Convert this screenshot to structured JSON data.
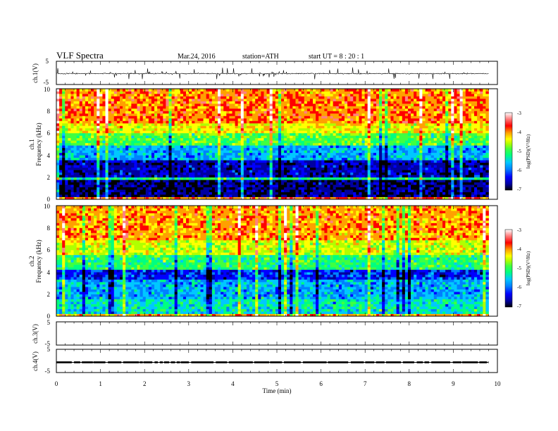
{
  "header": {
    "title": "VLF  Spectra",
    "date": "Mar.24, 2016",
    "station": "station=ATH",
    "start": "start  UT  =   8  : 20 : 1"
  },
  "colors": {
    "colormap": [
      "#000000",
      "#0000a0",
      "#0000ff",
      "#0080ff",
      "#00c8ff",
      "#00ff80",
      "#40ff40",
      "#b0ff00",
      "#ffff00",
      "#ffa000",
      "#ff0000",
      "#ff8080",
      "#ffffff"
    ],
    "frame": "#000000",
    "waveform": "#000000"
  },
  "chart_data": [
    {
      "type": "line",
      "panel": "ch1-waveform",
      "ylabel": "ch.1(V)",
      "ylim": [
        -5,
        5
      ],
      "yticks": [
        "5",
        "-5"
      ],
      "x_range_min": [
        0,
        9.8
      ],
      "series": [
        {
          "values": "noise around -0.3 V, bursts to about ±2.5 V"
        }
      ]
    },
    {
      "type": "heatmap",
      "panel": "ch1-spectrogram",
      "ylabel": [
        "ch.1",
        "Frequency (kHz)"
      ],
      "ylim": [
        0,
        10
      ],
      "yticks": [
        "0",
        "2",
        "4",
        "6",
        "8",
        "10"
      ],
      "x_range_min": [
        0,
        9.8
      ],
      "colorbar": {
        "label": "log(PSD)(V²/Hz)",
        "range": [
          -7,
          -3
        ],
        "ticks": [
          "-3",
          "-4",
          "-5",
          "-6",
          "-7"
        ]
      },
      "frequency_profile": [
        {
          "f_khz": [
            0.0,
            0.3
          ],
          "log_psd": -3.8
        },
        {
          "f_khz": [
            0.3,
            1.8
          ],
          "log_psd": -6.8
        },
        {
          "f_khz": [
            1.8,
            2.1
          ],
          "log_psd": -5.3
        },
        {
          "f_khz": [
            2.1,
            3.5
          ],
          "log_psd": -6.6
        },
        {
          "f_khz": [
            3.5,
            5.0
          ],
          "log_psd": -5.8
        },
        {
          "f_khz": [
            5.0,
            6.0
          ],
          "log_psd": -5.0
        },
        {
          "f_khz": [
            6.0,
            7.0
          ],
          "log_psd": -4.4
        },
        {
          "f_khz": [
            7.0,
            10.0
          ],
          "log_psd": -3.9
        }
      ]
    },
    {
      "type": "heatmap",
      "panel": "ch2-spectrogram",
      "ylabel": [
        "ch.2",
        "Frequency (kHz)"
      ],
      "ylim": [
        0,
        10
      ],
      "yticks": [
        "0",
        "2",
        "4",
        "6",
        "8",
        "10"
      ],
      "x_range_min": [
        0,
        9.8
      ],
      "colorbar": {
        "label": "log(PSD)(V²/Hz)",
        "range": [
          -7,
          -3
        ],
        "ticks": [
          "-3",
          "-4",
          "-5",
          "-6",
          "-7"
        ]
      },
      "frequency_profile": [
        {
          "f_khz": [
            0.0,
            0.3
          ],
          "log_psd": -4.0
        },
        {
          "f_khz": [
            0.3,
            1.5
          ],
          "log_psd": -5.5
        },
        {
          "f_khz": [
            1.5,
            3.3
          ],
          "log_psd": -5.8
        },
        {
          "f_khz": [
            3.3,
            4.2
          ],
          "log_psd": -6.3
        },
        {
          "f_khz": [
            4.2,
            5.5
          ],
          "log_psd": -5.2
        },
        {
          "f_khz": [
            5.5,
            7.0
          ],
          "log_psd": -4.5
        },
        {
          "f_khz": [
            7.0,
            10.0
          ],
          "log_psd": -4.0
        }
      ]
    },
    {
      "type": "line",
      "panel": "ch3-waveform",
      "ylabel": "ch.3(V)",
      "ylim": [
        -5,
        5
      ],
      "yticks": [
        "5",
        "-5"
      ],
      "series": []
    },
    {
      "type": "line",
      "panel": "ch4-waveform",
      "ylabel": "ch.4(V)",
      "ylim": [
        -5,
        5
      ],
      "yticks": [
        "5",
        "-5"
      ],
      "x_range_min": [
        0,
        9.8
      ],
      "series": [
        {
          "values": "square pulse train near -0.6 V"
        }
      ]
    },
    {
      "type": "axis",
      "panel": "time-axis",
      "xlabel": "Time  (min)",
      "xlim": [
        0,
        10
      ],
      "xticks": [
        "0",
        "1",
        "2",
        "3",
        "4",
        "5",
        "6",
        "7",
        "8",
        "9",
        "10"
      ]
    }
  ]
}
